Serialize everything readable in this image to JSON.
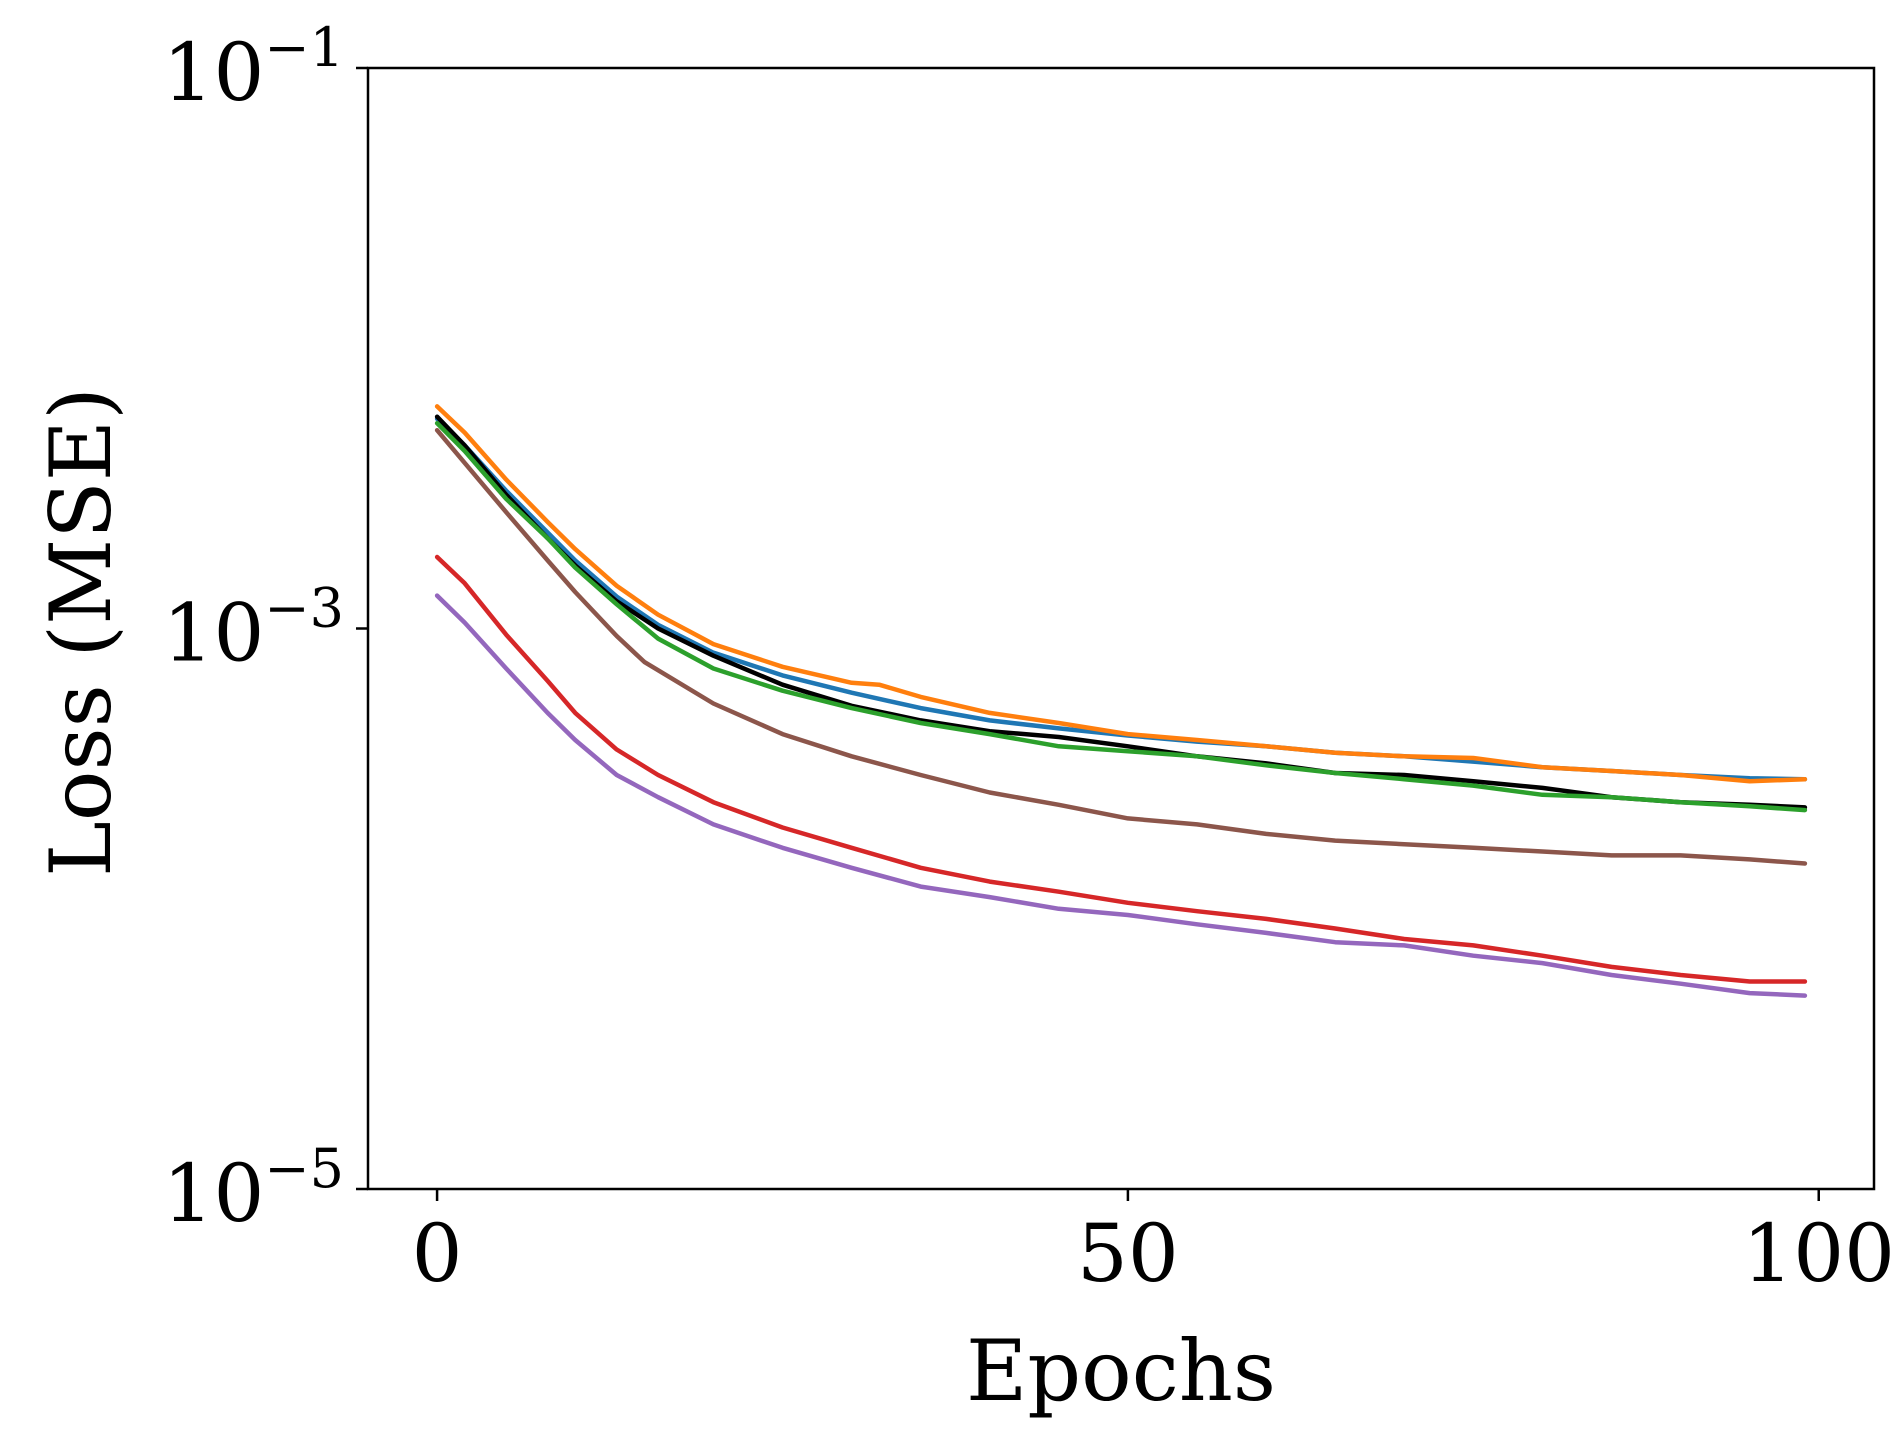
{
  "chart_data": {
    "type": "line",
    "title": "",
    "xlabel": "Epochs",
    "ylabel": "Loss (MSE)",
    "xlim": [
      -5,
      104
    ],
    "ylim": [
      1e-05,
      0.1
    ],
    "yscale": "log",
    "grid": false,
    "legend": null,
    "xticks": [
      {
        "value": 0,
        "label": "0"
      },
      {
        "value": 50,
        "label": "50"
      },
      {
        "value": 100,
        "label": "100"
      }
    ],
    "yticks": [
      {
        "value": 0.1,
        "base": "10",
        "exp": "−1"
      },
      {
        "value": 0.001,
        "base": "10",
        "exp": "−3"
      },
      {
        "value": 1e-05,
        "base": "10",
        "exp": "−5"
      }
    ],
    "series": [
      {
        "name": "blue",
        "color": "#1f77b4",
        "x": [
          0,
          2,
          5,
          8,
          10,
          13,
          16,
          20,
          25,
          30,
          35,
          40,
          45,
          50,
          55,
          60,
          65,
          70,
          75,
          80,
          85,
          90,
          95,
          99
        ],
        "y": [
          0.0056,
          0.0045,
          0.0031,
          0.0022,
          0.00175,
          0.0013,
          0.00103,
          0.00082,
          0.00068,
          0.00059,
          0.00052,
          0.00047,
          0.00044,
          0.000415,
          0.000395,
          0.00038,
          0.00036,
          0.00035,
          0.000335,
          0.00032,
          0.00031,
          0.0003,
          0.000292,
          0.00029
        ]
      },
      {
        "name": "orange",
        "color": "#ff7f0e",
        "x": [
          0,
          2,
          5,
          8,
          10,
          13,
          16,
          20,
          25,
          30,
          32,
          35,
          40,
          45,
          50,
          55,
          60,
          65,
          70,
          75,
          80,
          85,
          90,
          95,
          99
        ],
        "y": [
          0.0062,
          0.005,
          0.0034,
          0.0024,
          0.00192,
          0.00142,
          0.00112,
          0.00088,
          0.00073,
          0.00064,
          0.00063,
          0.00057,
          0.0005,
          0.00046,
          0.00042,
          0.0004,
          0.00038,
          0.00036,
          0.00035,
          0.000345,
          0.00032,
          0.00031,
          0.0003,
          0.000285,
          0.00029
        ]
      },
      {
        "name": "black",
        "color": "#000000",
        "x": [
          0,
          2,
          5,
          8,
          10,
          13,
          16,
          20,
          25,
          30,
          35,
          40,
          45,
          50,
          55,
          60,
          65,
          70,
          75,
          80,
          85,
          90,
          95,
          99
        ],
        "y": [
          0.0057,
          0.0045,
          0.003,
          0.0021,
          0.00168,
          0.00125,
          0.001,
          0.0008,
          0.00063,
          0.00053,
          0.00047,
          0.00043,
          0.00041,
          0.00038,
          0.00035,
          0.00033,
          0.000305,
          0.0003,
          0.000285,
          0.00027,
          0.00025,
          0.00024,
          0.000235,
          0.00023
        ]
      },
      {
        "name": "green",
        "color": "#2ca02c",
        "x": [
          0,
          2,
          5,
          8,
          10,
          13,
          16,
          20,
          25,
          30,
          35,
          40,
          45,
          50,
          55,
          60,
          65,
          70,
          75,
          80,
          85,
          90,
          95,
          99
        ],
        "y": [
          0.0054,
          0.0043,
          0.0029,
          0.0021,
          0.00165,
          0.00122,
          0.00092,
          0.00072,
          0.0006,
          0.00052,
          0.00046,
          0.00042,
          0.00038,
          0.000365,
          0.00035,
          0.000325,
          0.000305,
          0.00029,
          0.000275,
          0.000255,
          0.00025,
          0.00024,
          0.000232,
          0.000225
        ]
      },
      {
        "name": "brown",
        "color": "#8c564b",
        "x": [
          0,
          2,
          5,
          8,
          10,
          13,
          15,
          20,
          25,
          30,
          35,
          40,
          45,
          50,
          55,
          60,
          65,
          70,
          75,
          80,
          85,
          90,
          95,
          99
        ],
        "y": [
          0.0051,
          0.0039,
          0.0026,
          0.00175,
          0.00135,
          0.00094,
          0.00076,
          0.00054,
          0.00042,
          0.00035,
          0.0003,
          0.00026,
          0.000235,
          0.00021,
          0.0002,
          0.000185,
          0.000175,
          0.00017,
          0.000165,
          0.00016,
          0.000155,
          0.000155,
          0.00015,
          0.000145
        ]
      },
      {
        "name": "red",
        "color": "#d62728",
        "x": [
          0,
          2,
          5,
          8,
          10,
          13,
          16,
          20,
          25,
          30,
          35,
          40,
          45,
          50,
          55,
          60,
          65,
          70,
          75,
          80,
          85,
          90,
          95,
          99
        ],
        "y": [
          0.0018,
          0.00145,
          0.00095,
          0.00065,
          0.0005,
          0.00037,
          0.0003,
          0.00024,
          0.000195,
          0.000165,
          0.00014,
          0.000125,
          0.000115,
          0.000105,
          9.8e-05,
          9.2e-05,
          8.5e-05,
          7.8e-05,
          7.4e-05,
          6.8e-05,
          6.2e-05,
          5.8e-05,
          5.5e-05,
          5.5e-05
        ]
      },
      {
        "name": "purple",
        "color": "#9467bd",
        "x": [
          0,
          2,
          5,
          8,
          10,
          13,
          16,
          20,
          25,
          30,
          35,
          40,
          45,
          50,
          55,
          60,
          65,
          70,
          75,
          80,
          85,
          90,
          95,
          99
        ],
        "y": [
          0.00131,
          0.00105,
          0.00072,
          0.0005,
          0.0004,
          0.0003,
          0.00025,
          0.0002,
          0.000165,
          0.00014,
          0.00012,
          0.00011,
          0.0001,
          9.5e-05,
          8.8e-05,
          8.2e-05,
          7.6e-05,
          7.4e-05,
          6.8e-05,
          6.4e-05,
          5.8e-05,
          5.4e-05,
          5e-05,
          4.9e-05
        ]
      }
    ]
  }
}
